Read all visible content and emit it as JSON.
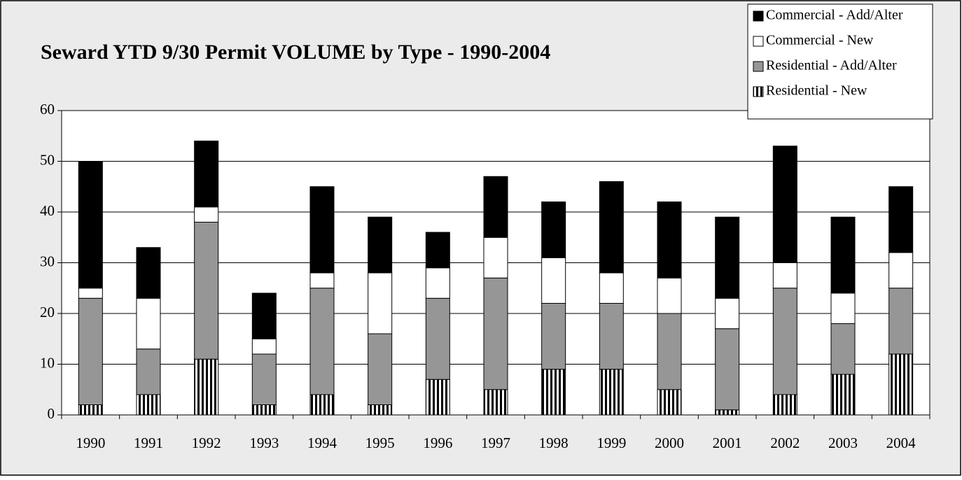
{
  "chart_data": {
    "type": "stacked_bar",
    "title": "Seward YTD 9/30 Permit VOLUME by Type - 1990-2004",
    "categories": [
      "1990",
      "1991",
      "1992",
      "1993",
      "1994",
      "1995",
      "1996",
      "1997",
      "1998",
      "1999",
      "2000",
      "2001",
      "2002",
      "2003",
      "2004"
    ],
    "series": [
      {
        "name": "Residential - New",
        "color": "#000000",
        "pattern": "vertical-stripes",
        "values": [
          2,
          4,
          11,
          2,
          4,
          2,
          7,
          5,
          9,
          9,
          5,
          1,
          4,
          8,
          12
        ]
      },
      {
        "name": "Residential - Add/Alter",
        "color": "#969696",
        "values": [
          21,
          9,
          27,
          10,
          21,
          14,
          16,
          22,
          13,
          13,
          15,
          16,
          21,
          10,
          13
        ]
      },
      {
        "name": "Commercial - New",
        "color": "#ffffff",
        "values": [
          2,
          10,
          3,
          3,
          3,
          12,
          6,
          8,
          9,
          6,
          7,
          6,
          5,
          6,
          7
        ]
      },
      {
        "name": "Commercial - Add/Alter",
        "color": "#000000",
        "values": [
          25,
          10,
          13,
          9,
          17,
          11,
          7,
          12,
          11,
          18,
          15,
          16,
          23,
          15,
          13
        ]
      }
    ],
    "ylim": [
      0,
      60
    ],
    "yticks": [
      0,
      10,
      20,
      30,
      40,
      50,
      60
    ],
    "grid": true,
    "legend": "top-right"
  }
}
